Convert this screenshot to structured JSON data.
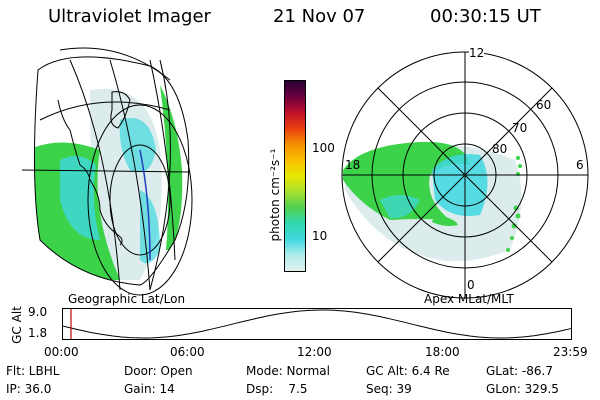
{
  "header": {
    "title": "Ultraviolet Imager",
    "date": "21 Nov 07",
    "time": "00:30:15 UT"
  },
  "colorbar": {
    "unit_label": "photon cm⁻²s⁻¹",
    "tick_labels": [
      "100",
      "10"
    ],
    "colors": [
      "#2a0033",
      "#6a0040",
      "#c0102a",
      "#e84010",
      "#f59000",
      "#f8c000",
      "#e8e800",
      "#a8e030",
      "#50d050",
      "#30d8b0",
      "#40d8e0",
      "#b0ecec",
      "#e4f0f0"
    ]
  },
  "left_panel": {
    "caption": "Geographic Lat/Lon"
  },
  "right_panel": {
    "caption": "Apex MLat/MLT",
    "mlt_labels": [
      "12",
      "18",
      "6",
      "0"
    ],
    "mlat_labels": [
      "60",
      "70",
      "80"
    ]
  },
  "timeline": {
    "y_label": "GC Alt",
    "y_ticks": [
      "9.0",
      "1.8"
    ],
    "x_ticks": [
      "00:00",
      "06:00",
      "12:00",
      "18:00",
      "23:59"
    ]
  },
  "footer": {
    "flt": "Flt: LBHL",
    "door": "Door: Open",
    "mode": "Mode: Normal",
    "gc_alt": "GC Alt: 6.4 Re",
    "glat": "GLat: -86.7",
    "ip": "IP: 36.0",
    "gain": "Gain: 14",
    "dsp": "Dsp:    7.5",
    "seq": "Seq: 39",
    "glon": "GLon: 329.5"
  },
  "colors": {
    "aurora_green": "#3cd24a",
    "aurora_cyan": "#40d8e0",
    "aurora_pale": "#dcecec",
    "marker_red": "#c00000"
  }
}
